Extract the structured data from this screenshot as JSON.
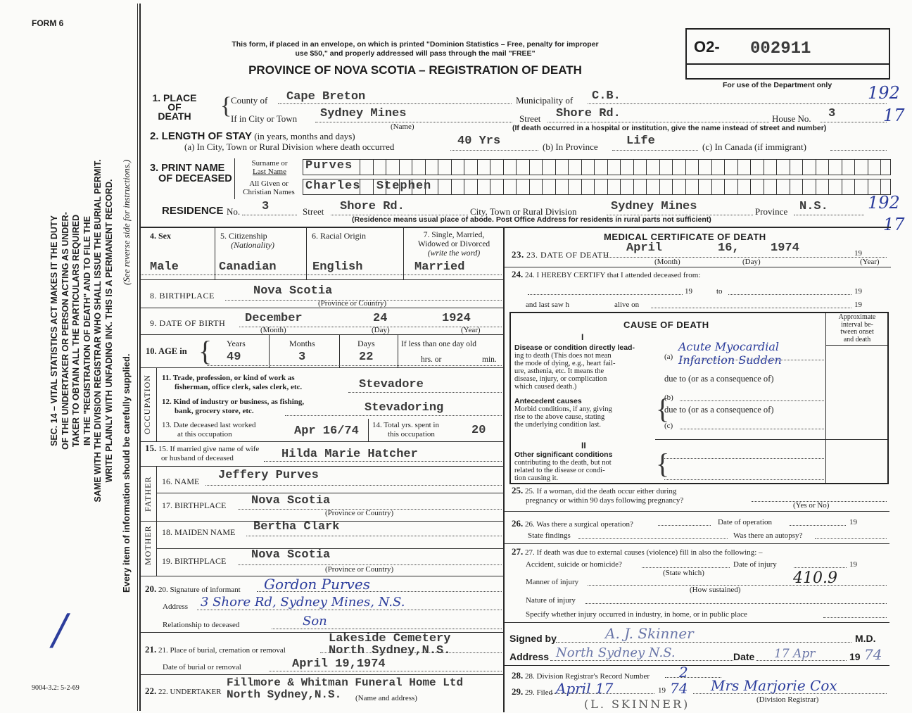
{
  "header": {
    "form_no": "FORM 6",
    "notice_1": "This form, if placed in an envelope, on which is printed \"Dominion Statistics – Free, penalty for improper",
    "notice_2": "use $50,\" and properly addressed will pass through the mail \"FREE\"",
    "title": "PROVINCE OF NOVA SCOTIA – REGISTRATION OF DEATH",
    "reg_prefix": "O2-",
    "reg_number": "002911",
    "dept_only": "For use of the Department only",
    "dept_code_1": "192",
    "dept_code_2": "17",
    "dept_code_3": "192",
    "dept_code_4": "17",
    "footer_code": "9004-3.2: 5-2-69"
  },
  "margin": {
    "lines": [
      "SEC. 14 – VITAL STATISTICS ACT MAKES IT THE DUTY",
      "OF THE UNDERTAKER OR PERSON ACTING AS UNDER-",
      "TAKER TO OBTAIN ALL THE PARTICULARS REQUIRED",
      "IN THE \"REGISTRATION OF DEATH\" AND TO FILE THE",
      "SAME WITH THE DIVISION REGISTRAR WHO SHALL ISSUE THE BURIAL PERMIT.",
      "WRITE PLAINLY WITH UNFADING INK. THIS IS A PERMANENT RECORD."
    ],
    "every_item": "Every item of information should be carefully supplied.",
    "see_reverse": "(See reverse side for instructions.)"
  },
  "s1": {
    "label_1": "1. PLACE",
    "label_2": "OF",
    "label_3": "DEATH",
    "county_label": "County of",
    "county": "Cape Breton",
    "municipality_label": "Municipality of",
    "municipality": "C.B.",
    "city_label": "If in City or Town",
    "city": "Sydney Mines",
    "name_note": "(Name)",
    "street_label": "Street",
    "street": "Shore Rd.",
    "house_label": "House No.",
    "house": "3",
    "hospital_note": "(If death occurred in a hospital or institution, give the name instead of street and number)"
  },
  "s2": {
    "label": "2. LENGTH OF STAY",
    "label_note": "(in years, months and days)",
    "a_label": "(a) In City, Town or Rural Division where death occurred",
    "a": "40 Yrs",
    "b_label": "(b) In Province",
    "b": "Life",
    "c_label": "(c) In Canada (if immigrant)"
  },
  "s3": {
    "label_1": "3. PRINT NAME",
    "label_2": "OF DECEASED",
    "surname_label_1": "Surname or",
    "surname_label_2": "Last Name",
    "surname": "Purves",
    "given_label_1": "All Given or",
    "given_label_2": "Christian Names",
    "given": "Charles  Stephen"
  },
  "residence": {
    "label": "RESIDENCE",
    "no_label": "No.",
    "no": "3",
    "street_label": "Street",
    "street": "Shore Rd.",
    "city_label": "City, Town or Rural Division",
    "city": "Sydney Mines",
    "province_label": "Province",
    "province": "N.S.",
    "note": "(Residence means usual place of abode. Post Office Address for residents in rural parts not sufficient)"
  },
  "s4": {
    "label": "4. Sex",
    "value": "Male"
  },
  "s5": {
    "label": "5. Citizenship",
    "sub": "(Nationality)",
    "value": "Canadian"
  },
  "s6": {
    "label": "6. Racial Origin",
    "value": "English"
  },
  "s7": {
    "label_1": "7. Single, Married,",
    "label_2": "Widowed or Divorced",
    "label_3": "(write the word)",
    "value": "Married"
  },
  "s8": {
    "label": "8. BIRTHPLACE",
    "value": "Nova Scotia",
    "note": "(Province or Country)"
  },
  "s9": {
    "label": "9. DATE OF BIRTH",
    "month": "December",
    "day": "24",
    "year": "1924",
    "month_note": "(Month)",
    "day_note": "(Day)",
    "year_note": "(Year)"
  },
  "s10": {
    "label": "10. AGE in",
    "years_label": "Years",
    "years": "49",
    "months_label": "Months",
    "months": "3",
    "days_label": "Days",
    "days": "22",
    "less_label": "If less than one day old",
    "hrs": "hrs. or",
    "min": "min."
  },
  "occupation_label": "OCCUPATION",
  "s11": {
    "label_1": "11. Trade, profession, or kind of work as",
    "label_2": "fisherman, office clerk, sales clerk, etc.",
    "value": "Stevadore"
  },
  "s12": {
    "label_1": "12. Kind of industry or business, as fishing,",
    "label_2": "bank, grocery store, etc.",
    "value": "Stevadoring"
  },
  "s13": {
    "label_1": "13. Date deceased last worked",
    "label_2": "at this occupation",
    "value": "Apr 16/74"
  },
  "s14": {
    "label_1": "14. Total yrs. spent in",
    "label_2": "this occupation",
    "value": "20"
  },
  "s15": {
    "label_1": "15. If married give name of wife",
    "label_2": "or husband of deceased",
    "value": "Hilda Marie Hatcher"
  },
  "father_label": "FATHER",
  "mother_label": "MOTHER",
  "s16": {
    "label": "16. NAME",
    "value": "Jeffery Purves"
  },
  "s17": {
    "label": "17. BIRTHPLACE",
    "value": "Nova Scotia",
    "note": "(Province or Country)"
  },
  "s18": {
    "label": "18. MAIDEN NAME",
    "value": "Bertha Clark"
  },
  "s19": {
    "label": "19. BIRTHPLACE",
    "value": "Nova Scotia",
    "note": "(Province or Country)"
  },
  "s20": {
    "sig_label": "20. Signature of informant",
    "signature": "Gordon Purves",
    "address_label": "Address",
    "address": "3 Shore Rd, Sydney Mines, N.S.",
    "rel_label": "Relationship to deceased",
    "relationship": "Son"
  },
  "s21": {
    "place_label": "21. Place of burial, cremation or removal",
    "place_1": "Lakeside Cemetery",
    "place_2": "North Sydney,N.S.",
    "date_label": "Date of burial or removal",
    "date": "April 19,1974"
  },
  "s22": {
    "label": "22. UNDERTAKER",
    "value_1": "Fillmore & Whitman Funeral Home Ltd",
    "value_2": "North Sydney,N.S.",
    "note": "(Name and address)"
  },
  "medical": {
    "title": "MEDICAL CERTIFICATE OF DEATH"
  },
  "s23": {
    "label": "23. DATE OF DEATH",
    "month": "April",
    "day": "16,",
    "year": "1974",
    "nineteen": "19",
    "month_note": "(Month)",
    "day_note": "(Day)",
    "year_note": "(Year)"
  },
  "s24": {
    "label": "24. I HEREBY CERTIFY that I attended deceased from:",
    "nineteen": "19",
    "to": "to",
    "last_saw": "and last saw h",
    "alive_on": "alive on"
  },
  "cause": {
    "title": "CAUSE OF DEATH",
    "part_i": "I",
    "direct_title": "Disease or condition directly lead-",
    "direct_1": "ing to death (This does not mean",
    "direct_2": "the mode of dying, e.g., heart fail-",
    "direct_3": "ure, asthenia, etc. It means the",
    "direct_4": "disease, injury, or complication",
    "direct_5": "which caused death.)",
    "a": "(a)",
    "a_value": "Acute Myocardial Infarction Sudden",
    "due_1": "due to (or as a consequence of)",
    "ante_title": "Antecedent causes",
    "ante_1": "Morbid conditions, if any, giving",
    "ante_2": "rise to the above cause, stating",
    "ante_3": "the underlying condition last.",
    "b": "(b)",
    "due_2": "due to (or as a consequence of)",
    "c": "(c)",
    "part_ii": "II",
    "other_title": "Other significant conditions",
    "other_1": "contributing to the death, but not",
    "other_2": "related to the disease or condi-",
    "other_3": "tion causing it.",
    "interval_1": "Approximate",
    "interval_2": "interval be-",
    "interval_3": "tween onset",
    "interval_4": "and death"
  },
  "s25": {
    "label_1": "25. If a woman, did the death occur either during",
    "label_2": "pregnancy or within 90 days following pregnancy?",
    "note": "(Yes or No)"
  },
  "s26": {
    "label": "26. Was there a surgical operation?",
    "date_label": "Date of operation",
    "nineteen": "19",
    "findings": "State findings",
    "autopsy": "Was there an autopsy?"
  },
  "s27": {
    "label": "27. If death was due to external causes (violence) fill in also the following: –",
    "accident": "Accident, suicide or homicide?",
    "state_which": "(State which)",
    "date_injury": "Date of injury",
    "nineteen": "19",
    "manner": "Manner of injury",
    "manner_code": "410.9",
    "how": "(How sustained)",
    "nature": "Nature of injury",
    "specify": "Specify whether injury occurred in industry, in home, or in public place"
  },
  "signed": {
    "label": "Signed by",
    "signature": "A. J. Skinner",
    "md": "M.D.",
    "address_label": "Address",
    "address": "North Sydney N.S.",
    "date_label": "Date",
    "date": "17 Apr",
    "year_prefix": "19",
    "year": "74"
  },
  "s28": {
    "label": "28. Division Registrar's Record Number",
    "value": "2"
  },
  "s29": {
    "label": "29. Filed",
    "date": "April 17",
    "year_prefix": "19",
    "year": "74",
    "registrar": "Mrs Marjorie Cox",
    "registrar_note": "(Division Registrar)",
    "name_note": "(L. SKINNER)"
  },
  "colors": {
    "ink_blue": "#2c3d9c",
    "print": "#1d1d1d",
    "typed": "#3a3a3a"
  }
}
